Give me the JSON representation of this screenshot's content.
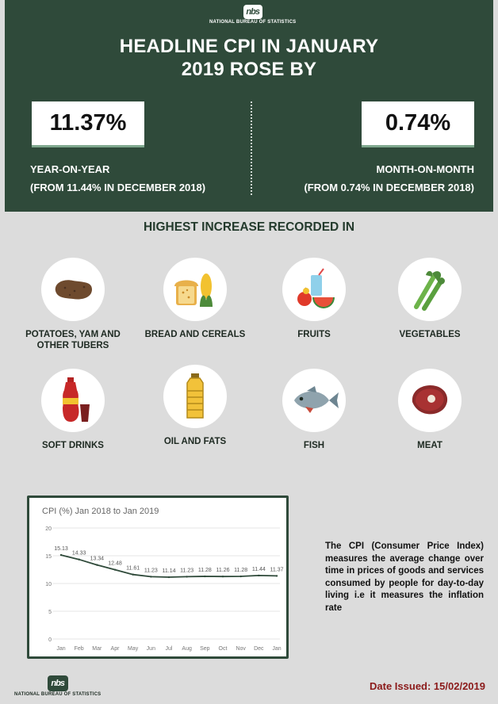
{
  "org": {
    "name": "NATIONAL BUREAU OF STATISTICS",
    "logo_text": "nbs"
  },
  "headline": {
    "line1": "HEADLINE CPI IN JANUARY",
    "line2": "2019 ROSE BY"
  },
  "year_on_year": {
    "value": "11.37%",
    "label": "YEAR-ON-YEAR",
    "note": "(FROM 11.44% IN DECEMBER 2018)"
  },
  "month_on_month": {
    "value": "0.74%",
    "label": "MONTH-ON-MONTH",
    "note": "(FROM 0.74% IN DECEMBER 2018)"
  },
  "highest_increase": {
    "title": "HIGHEST INCREASE RECORDED IN",
    "items": [
      {
        "label": "POTATOES, YAM AND OTHER TUBERS",
        "icon": "potato-icon"
      },
      {
        "label": "BREAD AND CEREALS",
        "icon": "bread-corn-icon"
      },
      {
        "label": "FRUITS",
        "icon": "fruits-icon"
      },
      {
        "label": "VEGETABLES",
        "icon": "celery-icon"
      },
      {
        "label": "SOFT DRINKS",
        "icon": "soft-drink-icon"
      },
      {
        "label": "OIL AND FATS",
        "icon": "oil-bottle-icon"
      },
      {
        "label": "FISH",
        "icon": "fish-icon"
      },
      {
        "label": "MEAT",
        "icon": "meat-icon"
      }
    ]
  },
  "chart_data": {
    "type": "line",
    "title": "CPI (%) Jan 2018 to Jan 2019",
    "categories": [
      "Jan",
      "Feb",
      "Mar",
      "Apr",
      "May",
      "Jun",
      "Jul",
      "Aug",
      "Sep",
      "Oct",
      "Nov",
      "Dec",
      "Jan"
    ],
    "series": [
      {
        "values": [
          15.13,
          14.33,
          13.34,
          12.48,
          11.61,
          11.23,
          11.14,
          11.23,
          11.28,
          11.26,
          11.28,
          11.44,
          11.37
        ]
      }
    ],
    "data_labels": [
      "15.13",
      "14.33",
      "13.34",
      "12.48",
      "11.61",
      "11.23",
      "11.14",
      "11.23",
      "11.28",
      "11.26",
      "11.28",
      "11.44",
      "11.37"
    ],
    "ylim": [
      0,
      20
    ],
    "yticks": [
      "0",
      "5",
      "10",
      "15",
      "20"
    ],
    "grid": true,
    "legend": "none",
    "line_color": "#2f4a3a"
  },
  "description": "The CPI (Consumer Price Index) measures the average change over time in prices of goods and services consumed by people for day-to-day living i.e it measures the inflation rate",
  "date_issued": "Date Issued: 15/02/2019",
  "colors": {
    "header_bg": "#2f4a3a",
    "body_bg": "#dcdcdc",
    "date": "#8b1a1a"
  }
}
